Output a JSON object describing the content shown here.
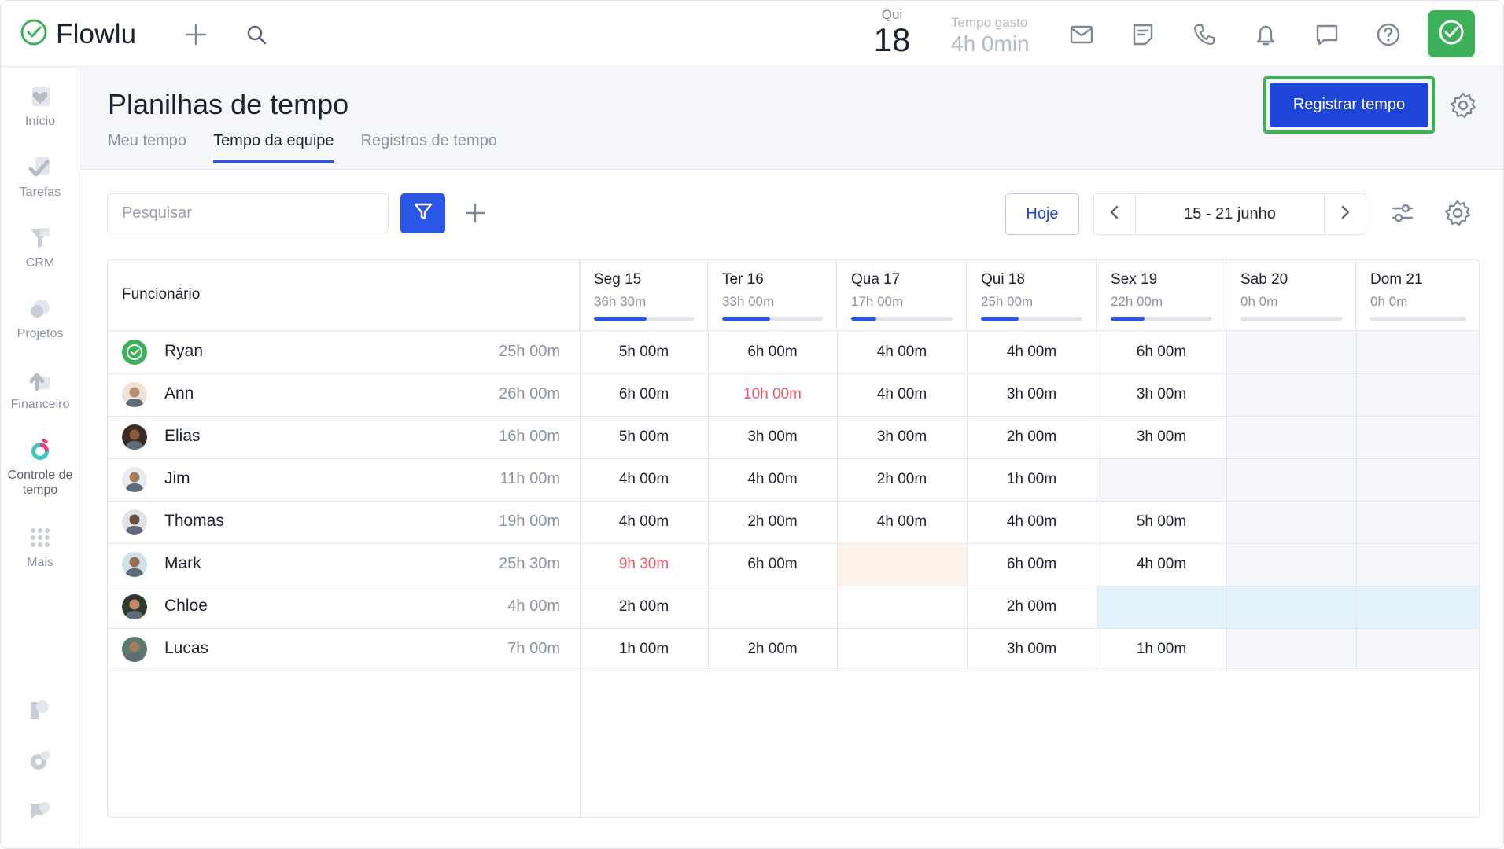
{
  "app": {
    "name": "Flowlu"
  },
  "topbar": {
    "date_day": "Qui",
    "date_num": "18",
    "spent_label": "Tempo gasto",
    "spent_value": "4h 0min",
    "icons": [
      "plus-icon",
      "search-icon",
      "mail-icon",
      "notes-icon",
      "phone-icon",
      "bell-icon",
      "chat-icon",
      "help-icon",
      "user-status-icon"
    ]
  },
  "sidebar": {
    "items": [
      {
        "label": "Início",
        "icon": "home-icon"
      },
      {
        "label": "Tarefas",
        "icon": "tasks-icon"
      },
      {
        "label": "CRM",
        "icon": "crm-icon"
      },
      {
        "label": "Projetos",
        "icon": "projects-icon"
      },
      {
        "label": "Financeiro",
        "icon": "finance-icon"
      },
      {
        "label": "Controle de tempo",
        "icon": "time-tracking-icon"
      },
      {
        "label": "Mais",
        "icon": "more-grid-icon"
      }
    ],
    "bottom_icons": [
      "pay-icon",
      "settings-icon",
      "support-chat-icon"
    ]
  },
  "page": {
    "title": "Planilhas de tempo",
    "tabs": [
      "Meu tempo",
      "Tempo da equipe",
      "Registros de tempo"
    ],
    "active_tab": "Tempo da equipe",
    "primary_button": "Registrar tempo"
  },
  "toolbar": {
    "search_placeholder": "Pesquisar",
    "today": "Hoje",
    "range": "15 - 21 junho"
  },
  "colors": {
    "accent": "#2a55e5",
    "button": "#1f44d8",
    "brand_green": "#3cb15a",
    "overtime": "#ee5a6a",
    "weekend": "#f5f7fa",
    "missing": "#fef3ea",
    "vacation": "#e3f2fb"
  },
  "table": {
    "employee_header": "Funcionário",
    "days": [
      {
        "label": "Seg 15",
        "total": "36h 30m",
        "progress": 0.53
      },
      {
        "label": "Ter 16",
        "total": "33h 00m",
        "progress": 0.48
      },
      {
        "label": "Qua 17",
        "total": "17h 00m",
        "progress": 0.25
      },
      {
        "label": "Qui 18",
        "total": "25h 00m",
        "progress": 0.37
      },
      {
        "label": "Sex 19",
        "total": "22h 00m",
        "progress": 0.33
      },
      {
        "label": "Sab 20",
        "total": "0h 0m",
        "progress": 0
      },
      {
        "label": "Dom 21",
        "total": "0h 0m",
        "progress": 0
      }
    ],
    "rows": [
      {
        "name": "Ryan",
        "total": "25h 00m",
        "avatar": "green-check",
        "hours": [
          "5h 00m",
          "6h 00m",
          "4h 00m",
          "4h 00m",
          "6h 00m",
          "",
          ""
        ]
      },
      {
        "name": "Ann",
        "total": "26h 00m",
        "avatar": "photo",
        "hours": [
          "6h 00m",
          "10h 00m",
          "4h 00m",
          "3h 00m",
          "3h 00m",
          "",
          ""
        ],
        "over": [
          1
        ]
      },
      {
        "name": "Elias",
        "total": "16h 00m",
        "avatar": "photo",
        "hours": [
          "5h 00m",
          "3h 00m",
          "3h 00m",
          "2h 00m",
          "3h 00m",
          "",
          ""
        ]
      },
      {
        "name": "Jim",
        "total": "11h 00m",
        "avatar": "photo",
        "hours": [
          "4h 00m",
          "4h 00m",
          "2h 00m",
          "1h 00m",
          "",
          "",
          ""
        ],
        "shaded": [
          4
        ]
      },
      {
        "name": "Thomas",
        "total": "19h 00m",
        "avatar": "photo",
        "hours": [
          "4h 00m",
          "2h 00m",
          "4h 00m",
          "4h 00m",
          "5h 00m",
          "",
          ""
        ]
      },
      {
        "name": "Mark",
        "total": "25h 30m",
        "avatar": "photo",
        "hours": [
          "9h 30m",
          "6h 00m",
          "",
          "6h 00m",
          "4h 00m",
          "",
          ""
        ],
        "over": [
          0
        ],
        "missing": [
          2
        ]
      },
      {
        "name": "Chloe",
        "total": "4h 00m",
        "avatar": "photo",
        "hours": [
          "2h 00m",
          "",
          "",
          "2h 00m",
          "",
          "",
          ""
        ],
        "vacation": [
          4,
          5,
          6
        ]
      },
      {
        "name": "Lucas",
        "total": "7h 00m",
        "avatar": "photo",
        "hours": [
          "1h 00m",
          "2h 00m",
          "",
          "3h 00m",
          "1h 00m",
          "",
          ""
        ]
      }
    ]
  }
}
